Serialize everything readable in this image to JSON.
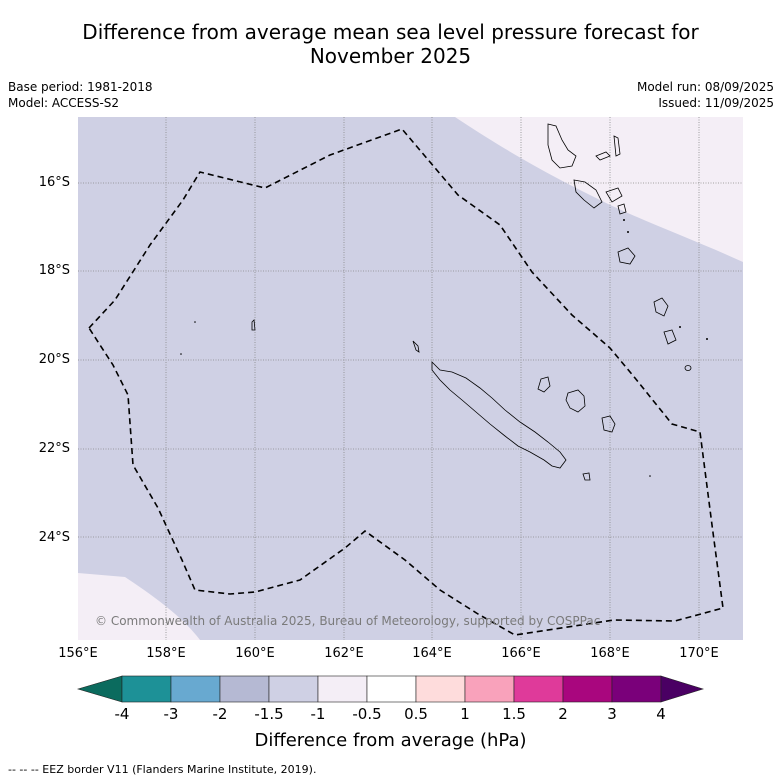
{
  "title_line1": "Difference from average mean sea level pressure forecast for",
  "title_line2": "November 2025",
  "base_period": "Base period: 1981-2018",
  "model": "Model: ACCESS-S2",
  "model_run": "Model run: 08/09/2025",
  "issued": "Issued: 11/09/2025",
  "credit": "© Commonwealth of Australia 2025, Bureau of Meteorology, supported by COSPPac",
  "footer": "-- -- -- EEZ border V11 (Flanders Marine Institute, 2019).",
  "map": {
    "lat_labels": [
      "16°S",
      "18°S",
      "20°S",
      "22°S",
      "24°S"
    ],
    "lon_labels": [
      "156°E",
      "158°E",
      "160°E",
      "162°E",
      "164°E",
      "166°E",
      "168°E",
      "170°E"
    ],
    "dominant_category": "-1.5 to -1",
    "colors": {
      "background_anomaly": "#cfd0e4",
      "ne_anomaly": "#f4eef6",
      "gridline": "#888888",
      "eez_border": "#000000"
    }
  },
  "colorbar": {
    "label": "Difference from average (hPa)",
    "ticks": [
      "-4",
      "-3",
      "-2",
      "-1.5",
      "-1",
      "-0.5",
      "0.5",
      "1",
      "1.5",
      "2",
      "3",
      "4"
    ],
    "colors": [
      "#0b6b5e",
      "#1d9197",
      "#68a9d0",
      "#b5b9d3",
      "#cfd0e4",
      "#f4eef6",
      "#ffffff",
      "#fedcdc",
      "#f9a2bb",
      "#df3a9a",
      "#a9067e",
      "#7a007a",
      "#4a0063"
    ]
  }
}
